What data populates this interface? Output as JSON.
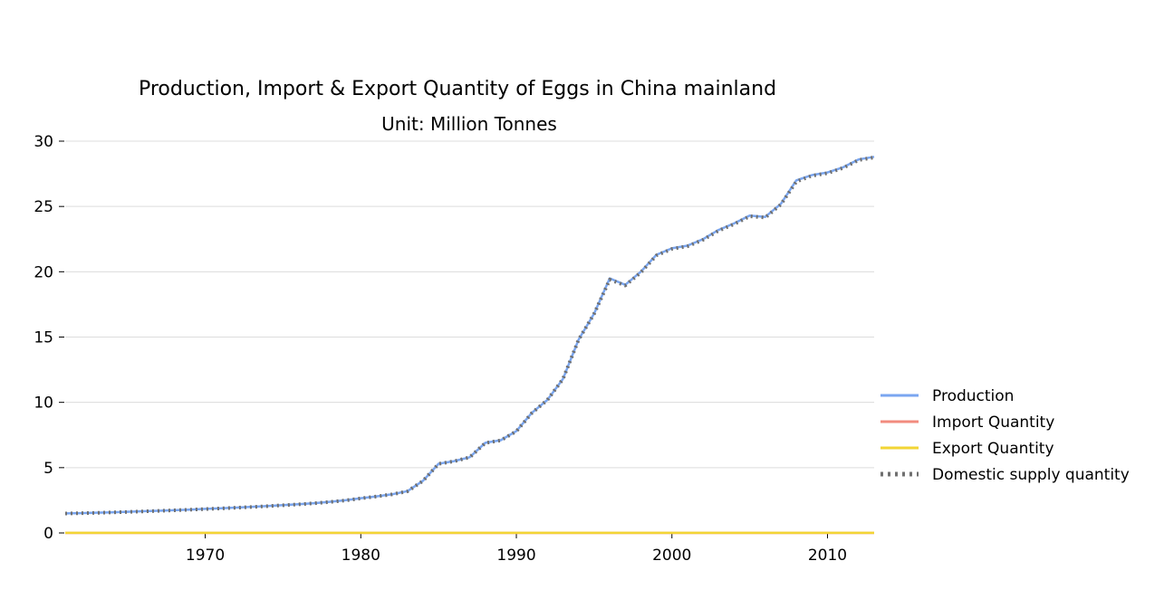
{
  "chart_data": {
    "type": "line",
    "title": "Production, Import & Export Quantity of Eggs in China mainland",
    "subtitle": "Unit: Million Tonnes",
    "xlabel": "",
    "ylabel": "",
    "xlim": [
      1961,
      2013
    ],
    "ylim": [
      0,
      30
    ],
    "x_ticks": [
      1970,
      1980,
      1990,
      2000,
      2010
    ],
    "y_ticks": [
      0,
      5,
      10,
      15,
      20,
      25,
      30
    ],
    "grid": "horizontal",
    "legend_position": "right",
    "x": [
      1961,
      1962,
      1963,
      1964,
      1965,
      1966,
      1967,
      1968,
      1969,
      1970,
      1971,
      1972,
      1973,
      1974,
      1975,
      1976,
      1977,
      1978,
      1979,
      1980,
      1981,
      1982,
      1983,
      1984,
      1985,
      1986,
      1987,
      1988,
      1989,
      1990,
      1991,
      1992,
      1993,
      1994,
      1995,
      1996,
      1997,
      1998,
      1999,
      2000,
      2001,
      2002,
      2003,
      2004,
      2005,
      2006,
      2007,
      2008,
      2009,
      2010,
      2011,
      2012,
      2013
    ],
    "series": [
      {
        "name": "Production",
        "color": "#7aa6f0",
        "style": "solid",
        "values": [
          1.5,
          1.52,
          1.55,
          1.58,
          1.62,
          1.66,
          1.7,
          1.74,
          1.79,
          1.84,
          1.89,
          1.94,
          2.0,
          2.06,
          2.13,
          2.2,
          2.28,
          2.38,
          2.5,
          2.66,
          2.8,
          2.96,
          3.2,
          4.0,
          5.3,
          5.5,
          5.8,
          6.9,
          7.1,
          7.8,
          9.2,
          10.2,
          11.8,
          14.8,
          16.8,
          19.5,
          19.0,
          20.0,
          21.3,
          21.8,
          22.0,
          22.5,
          23.2,
          23.7,
          24.3,
          24.2,
          25.2,
          27.0,
          27.4,
          27.6,
          28.0,
          28.6,
          28.8
        ]
      },
      {
        "name": "Import Quantity",
        "color": "#f28b7e",
        "style": "solid",
        "values": [
          0,
          0,
          0,
          0,
          0,
          0,
          0,
          0,
          0,
          0,
          0,
          0,
          0,
          0,
          0,
          0,
          0,
          0,
          0,
          0,
          0,
          0,
          0,
          0,
          0,
          0,
          0,
          0,
          0,
          0,
          0,
          0,
          0,
          0,
          0,
          0,
          0,
          0,
          0,
          0,
          0,
          0,
          0,
          0,
          0,
          0,
          0,
          0,
          0,
          0,
          0,
          0,
          0
        ]
      },
      {
        "name": "Export Quantity",
        "color": "#f2d535",
        "style": "solid",
        "values": [
          0.01,
          0.01,
          0.01,
          0.01,
          0.01,
          0.01,
          0.01,
          0.01,
          0.01,
          0.01,
          0.01,
          0.01,
          0.01,
          0.01,
          0.01,
          0.01,
          0.01,
          0.01,
          0.01,
          0.01,
          0.01,
          0.01,
          0.01,
          0.01,
          0.01,
          0.01,
          0.01,
          0.01,
          0.01,
          0.01,
          0.01,
          0.01,
          0.01,
          0.01,
          0.01,
          0.01,
          0.01,
          0.01,
          0.01,
          0.01,
          0.01,
          0.01,
          0.01,
          0.01,
          0.01,
          0.01,
          0.01,
          0.01,
          0.01,
          0.01,
          0.01,
          0.01,
          0.01
        ]
      },
      {
        "name": "Domestic supply quantity",
        "color": "#707070",
        "style": "dotted",
        "values": [
          1.49,
          1.51,
          1.54,
          1.57,
          1.61,
          1.65,
          1.69,
          1.73,
          1.78,
          1.83,
          1.88,
          1.93,
          1.99,
          2.05,
          2.12,
          2.19,
          2.27,
          2.37,
          2.49,
          2.65,
          2.79,
          2.95,
          3.19,
          3.99,
          5.29,
          5.49,
          5.79,
          6.89,
          7.09,
          7.79,
          9.19,
          10.19,
          11.79,
          14.79,
          16.79,
          19.4,
          18.95,
          19.95,
          21.25,
          21.75,
          21.95,
          22.45,
          23.15,
          23.65,
          24.25,
          24.15,
          25.15,
          26.9,
          27.35,
          27.55,
          27.95,
          28.55,
          28.75
        ]
      }
    ]
  }
}
